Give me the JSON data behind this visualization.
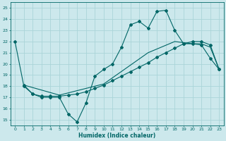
{
  "title": "",
  "xlabel": "Humidex (Indice chaleur)",
  "bg_color": "#cce8ec",
  "grid_color": "#aad4d8",
  "line_color": "#006666",
  "xlim": [
    -0.5,
    23.5
  ],
  "ylim": [
    14.5,
    25.5
  ],
  "yticks": [
    15,
    16,
    17,
    18,
    19,
    20,
    21,
    22,
    23,
    24,
    25
  ],
  "xticks": [
    0,
    1,
    2,
    3,
    4,
    5,
    6,
    7,
    8,
    9,
    10,
    11,
    12,
    13,
    14,
    15,
    16,
    17,
    18,
    19,
    20,
    21,
    22,
    23
  ],
  "line1_x": [
    0,
    1,
    2,
    3,
    4,
    5,
    6,
    7,
    8,
    9,
    10,
    11,
    12,
    13,
    14,
    15,
    16,
    17,
    18,
    19,
    20,
    21,
    22,
    23
  ],
  "line1_y": [
    22,
    18,
    17.3,
    17,
    17,
    17,
    15.5,
    14.8,
    16.5,
    18.9,
    19.5,
    20.0,
    21.5,
    23.5,
    23.8,
    23.2,
    24.7,
    24.8,
    23.0,
    21.8,
    21.8,
    21.7,
    20.5,
    19.5
  ],
  "line2_x": [
    1,
    2,
    3,
    4,
    5,
    6,
    7,
    8,
    9,
    10,
    11,
    12,
    13,
    14,
    15,
    16,
    17,
    18,
    19,
    20,
    21,
    22,
    23
  ],
  "line2_y": [
    18.1,
    17.3,
    17.1,
    17.1,
    17.1,
    17.2,
    17.3,
    17.5,
    17.8,
    18.1,
    18.5,
    18.9,
    19.3,
    19.7,
    20.1,
    20.6,
    21.0,
    21.4,
    21.8,
    22.0,
    22.0,
    21.7,
    19.5
  ],
  "line3_x": [
    1,
    5,
    10,
    15,
    18,
    20,
    21,
    22,
    23
  ],
  "line3_y": [
    18.1,
    17.2,
    18.2,
    21.0,
    22.0,
    21.8,
    21.8,
    21.5,
    19.5
  ]
}
